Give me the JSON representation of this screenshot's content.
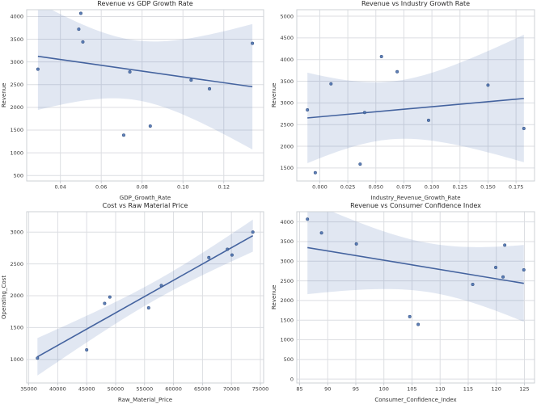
{
  "figure": {
    "background": "#ffffff",
    "grid_on": true,
    "layout": "2x2 scatter plots with linear regression line and 95% confidence band (seaborn regplot style)"
  },
  "colors": {
    "accent": "#4c72b0",
    "point": "#4c72b0",
    "point_edge": "#3a5686",
    "line": "#44639f",
    "band": "#4c72b0",
    "band_opacity": 0.17,
    "grid": "#dcdee2",
    "spine": "#ccd0d6",
    "tick_mark": "#c3c7cc",
    "tick_text": "#3a3a3a",
    "title_text": "#262626"
  },
  "chart_data": [
    {
      "type": "scatter",
      "title": "Revenue vs GDP Growth Rate",
      "xlabel": "GDP_Growth_Rate",
      "ylabel": "Revenue",
      "regression_line": true,
      "ci_band": true,
      "points": [
        [
          0.029,
          2840
        ],
        [
          0.049,
          3720
        ],
        [
          0.05,
          4070
        ],
        [
          0.051,
          3440
        ],
        [
          0.071,
          1390
        ],
        [
          0.074,
          2780
        ],
        [
          0.084,
          1590
        ],
        [
          0.104,
          2600
        ],
        [
          0.113,
          2410
        ],
        [
          0.134,
          3410
        ]
      ],
      "xlim": [
        0.0235,
        0.1395
      ],
      "ylim": [
        380,
        4150
      ],
      "xticks": [
        0.04,
        0.06,
        0.08,
        0.1,
        0.12
      ],
      "xtick_labels": [
        "0.04",
        "0.06",
        "0.08",
        "0.10",
        "0.12"
      ],
      "yticks": [
        500,
        1000,
        1500,
        2000,
        2500,
        3000,
        3500,
        4000
      ],
      "ytick_labels": [
        "500",
        "1000",
        "1500",
        "2000",
        "2500",
        "3000",
        "3500",
        "4000"
      ]
    },
    {
      "type": "scatter",
      "title": "Revenue vs Industry Growth Rate",
      "xlabel": "Industry_Revenue_Growth_Rate",
      "ylabel": "Revenue",
      "regression_line": true,
      "ci_band": true,
      "points": [
        [
          -0.011,
          2840
        ],
        [
          -0.004,
          1390
        ],
        [
          0.01,
          3440
        ],
        [
          0.036,
          1590
        ],
        [
          0.04,
          2780
        ],
        [
          0.055,
          4070
        ],
        [
          0.069,
          3720
        ],
        [
          0.097,
          2600
        ],
        [
          0.15,
          3410
        ],
        [
          0.182,
          2410
        ]
      ],
      "xlim": [
        -0.0205,
        0.1915
      ],
      "ylim": [
        1200,
        5150
      ],
      "xticks": [
        0.0,
        0.025,
        0.05,
        0.075,
        0.1,
        0.125,
        0.15,
        0.175
      ],
      "xtick_labels": [
        "0.000",
        "0.025",
        "0.050",
        "0.075",
        "0.100",
        "0.125",
        "0.150",
        "0.175"
      ],
      "yticks": [
        1500,
        2000,
        2500,
        3000,
        3500,
        4000,
        4500,
        5000
      ],
      "ytick_labels": [
        "1500",
        "2000",
        "2500",
        "3000",
        "3500",
        "4000",
        "4500",
        "5000"
      ]
    },
    {
      "type": "scatter",
      "title": "Cost vs Raw Material Price",
      "xlabel": "Raw_Material_Price",
      "ylabel": "Operating_Cost",
      "regression_line": true,
      "ci_band": true,
      "points": [
        [
          36500,
          1020
        ],
        [
          45000,
          1150
        ],
        [
          48100,
          1880
        ],
        [
          49000,
          1980
        ],
        [
          55700,
          1810
        ],
        [
          57900,
          2160
        ],
        [
          66100,
          2600
        ],
        [
          69300,
          2730
        ],
        [
          70100,
          2640
        ],
        [
          73700,
          3000
        ]
      ],
      "xlim": [
        34640,
        75560
      ],
      "ylim": [
        630,
        3320
      ],
      "xticks": [
        35000,
        40000,
        45000,
        50000,
        55000,
        60000,
        65000,
        70000,
        75000
      ],
      "xtick_labels": [
        "35000",
        "40000",
        "45000",
        "50000",
        "55000",
        "60000",
        "65000",
        "70000",
        "75000"
      ],
      "yticks": [
        1000,
        1500,
        2000,
        2500,
        3000
      ],
      "ytick_labels": [
        "1000",
        "1500",
        "2000",
        "2500",
        "3000"
      ]
    },
    {
      "type": "scatter",
      "title": "Revenue vs Consumer Confidence Index",
      "xlabel": "Consumer_Confidence_Index",
      "ylabel": "Revenue",
      "regression_line": true,
      "ci_band": true,
      "points": [
        [
          86.4,
          4070
        ],
        [
          88.9,
          3720
        ],
        [
          95.1,
          3440
        ],
        [
          104.6,
          1590
        ],
        [
          106.1,
          1390
        ],
        [
          115.8,
          2410
        ],
        [
          119.9,
          2840
        ],
        [
          121.2,
          2600
        ],
        [
          121.5,
          3410
        ],
        [
          124.9,
          2780
        ]
      ],
      "xlim": [
        84.5,
        126.8
      ],
      "ylim": [
        -100,
        4260
      ],
      "xticks": [
        85,
        90,
        95,
        100,
        105,
        110,
        115,
        120,
        125
      ],
      "xtick_labels": [
        "85",
        "90",
        "95",
        "100",
        "105",
        "110",
        "115",
        "120",
        "125"
      ],
      "yticks": [
        0,
        500,
        1000,
        1500,
        2000,
        2500,
        3000,
        3500,
        4000
      ],
      "ytick_labels": [
        "0",
        "500",
        "1000",
        "1500",
        "2000",
        "2500",
        "3000",
        "3500",
        "4000"
      ]
    }
  ]
}
